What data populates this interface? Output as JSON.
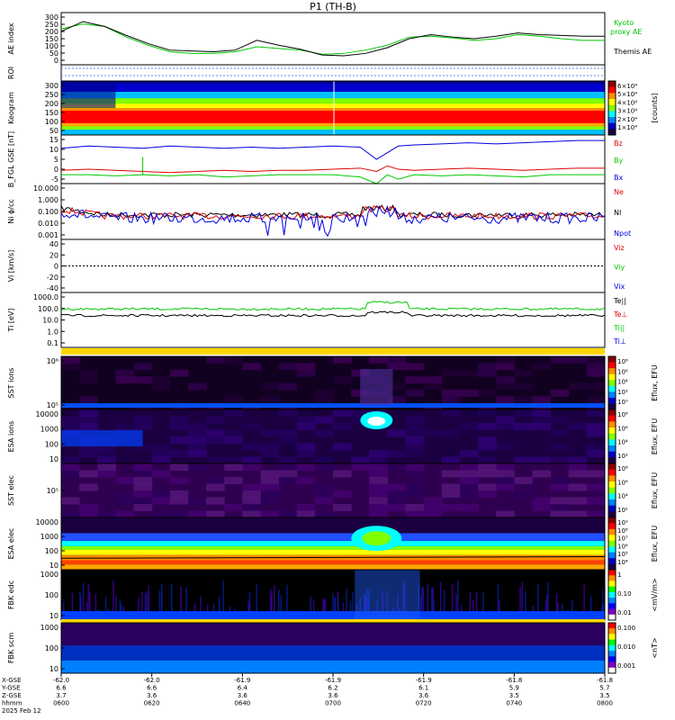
{
  "title": "P1 (TH-B)",
  "colors": {
    "green": "#00c800",
    "red": "#e00000",
    "blue": "#0000e0",
    "black": "#000000",
    "gold": "#ffd700",
    "dark": "#1a0030"
  },
  "chart_data": [
    {
      "type": "line",
      "id": "ae",
      "ylabel": "AE index",
      "yticks": [
        "300",
        "250",
        "200",
        "150",
        "100",
        "50",
        "0"
      ],
      "ylim": [
        -10,
        310
      ],
      "x": [
        0,
        0.04,
        0.08,
        0.12,
        0.16,
        0.2,
        0.24,
        0.28,
        0.32,
        0.36,
        0.4,
        0.44,
        0.48,
        0.52,
        0.56,
        0.6,
        0.64,
        0.68,
        0.72,
        0.76,
        0.8,
        0.84,
        0.88,
        0.92,
        0.96,
        1.0
      ],
      "series": [
        {
          "name": "Kyoto proxy AE",
          "color": "#00c800",
          "values": [
            210,
            240,
            225,
            160,
            110,
            70,
            60,
            60,
            70,
            100,
            90,
            80,
            55,
            60,
            80,
            110,
            160,
            165,
            155,
            140,
            150,
            175,
            165,
            150,
            140,
            140
          ]
        },
        {
          "name": "Themis AE",
          "color": "#000000",
          "values": [
            195,
            255,
            225,
            170,
            120,
            80,
            75,
            70,
            80,
            140,
            110,
            85,
            50,
            45,
            60,
            95,
            150,
            175,
            160,
            150,
            165,
            185,
            175,
            170,
            165,
            165
          ]
        }
      ],
      "legend": [
        "Kyoto",
        "proxy AE",
        "Themis AE"
      ]
    },
    {
      "type": "heatmap",
      "id": "roi",
      "ylabel": "ROI"
    },
    {
      "type": "heatmap",
      "id": "keogram",
      "ylabel": "Keogram",
      "yticks": [
        "300",
        "250",
        "200",
        "150",
        "100",
        "50"
      ],
      "colorbar": {
        "ticks": [
          "6×10⁴",
          "5×10⁴",
          "4×10⁴",
          "3×10⁴",
          "2×10⁴",
          "1×10⁴"
        ],
        "label": "[counts]"
      }
    },
    {
      "type": "line",
      "id": "bfield",
      "ylabel": "B_FGL GSE [nT]",
      "yticks": [
        "15",
        "10",
        "5",
        "0",
        "-5"
      ],
      "ylim": [
        -6,
        16
      ],
      "x": [
        0,
        0.05,
        0.1,
        0.15,
        0.2,
        0.25,
        0.3,
        0.35,
        0.4,
        0.45,
        0.5,
        0.55,
        0.58,
        0.6,
        0.62,
        0.65,
        0.7,
        0.75,
        0.8,
        0.85,
        0.9,
        0.95,
        1.0
      ],
      "series": [
        {
          "name": "Bz",
          "color": "#e00000",
          "values": [
            0,
            0.5,
            0,
            -0.5,
            -1,
            -0.5,
            0,
            -0.5,
            0,
            0,
            0.5,
            1,
            -0.5,
            2,
            0.5,
            0,
            0.5,
            1,
            0.5,
            0,
            0.5,
            1,
            1
          ]
        },
        {
          "name": "By",
          "color": "#00c800",
          "values": [
            -2,
            -2,
            -2.5,
            -2,
            -2.5,
            -2,
            -3,
            -2.5,
            -2,
            -2,
            -2,
            -3,
            -6,
            -2,
            -4,
            -2,
            -2.5,
            -2,
            -2.5,
            -3,
            -2,
            -2,
            -2
          ]
        },
        {
          "name": "Bx",
          "color": "#0000e0",
          "values": [
            10,
            11,
            10.5,
            10,
            11,
            10.5,
            10,
            10.5,
            10,
            10.5,
            11,
            10.5,
            5,
            8,
            11,
            11.5,
            12,
            12.5,
            12,
            12.5,
            13,
            13.5,
            13.5
          ]
        }
      ]
    },
    {
      "type": "line",
      "id": "density",
      "ylabel": "Ni ϕ/cc",
      "yticks": [
        "10.000",
        "1.000",
        "0.100",
        "0.010",
        "0.001"
      ],
      "log": true,
      "series_labels": [
        "Ne",
        "NI",
        "Npot"
      ]
    },
    {
      "type": "line",
      "id": "velocity",
      "ylabel": "Vi [km/s]",
      "yticks": [
        "40",
        "20",
        "0",
        "-20",
        "-40"
      ],
      "ylim": [
        -50,
        50
      ],
      "series_labels": [
        "Viz",
        "Viy",
        "Vix"
      ]
    },
    {
      "type": "line",
      "id": "temperature",
      "ylabel": "Ti [eV]",
      "yticks": [
        "1000.0",
        "100.0",
        "10.0",
        "1.0",
        "0.1"
      ],
      "log": true,
      "series_labels": [
        "Te||",
        "Te⊥",
        "Ti||",
        "Ti⊥"
      ]
    },
    {
      "type": "heatmap",
      "id": "sst_ion",
      "ylabel": "SST ions",
      "yticks": [
        "10⁶",
        "10⁵"
      ],
      "colorbar": {
        "ticks": [
          "10⁸",
          "10⁶",
          "10⁴",
          "10²",
          "10⁰"
        ],
        "label": "Eflux, EFU"
      }
    },
    {
      "type": "heatmap",
      "id": "esa_ion",
      "ylabel": "ESA ions",
      "yticks": [
        "10000",
        "1000",
        "100",
        "10"
      ],
      "colorbar": {
        "ticks": [
          "10⁸",
          "10⁶",
          "10⁴",
          "10²"
        ],
        "label": "Eflux, EFU"
      }
    },
    {
      "type": "heatmap",
      "id": "sst_elec",
      "ylabel": "SST elec",
      "yticks": [
        "10⁵"
      ],
      "colorbar": {
        "ticks": [
          "10⁸",
          "10⁶",
          "10⁴",
          "10²"
        ],
        "label": "Eflux, EFU"
      }
    },
    {
      "type": "heatmap",
      "id": "esa_elec",
      "ylabel": "ESA elec",
      "yticks": [
        "10000",
        "1000",
        "100",
        "10"
      ],
      "colorbar": {
        "ticks": [
          "10⁹",
          "10⁸",
          "10⁷",
          "10⁶",
          "10⁵",
          "10⁴"
        ],
        "label": "Eflux, EFU"
      }
    },
    {
      "type": "heatmap",
      "id": "fbk_e",
      "ylabel": "FBK edc",
      "yticks": [
        "1000",
        "100",
        "10"
      ],
      "colorbar": {
        "ticks": [
          "1",
          "0.10",
          "0.01"
        ],
        "label": "<mV/m>"
      }
    },
    {
      "type": "heatmap",
      "id": "fbk_b",
      "ylabel": "FBK scm",
      "yticks": [
        "1000",
        "100",
        "10"
      ],
      "colorbar": {
        "ticks": [
          "0.100",
          "0.010",
          "0.001"
        ],
        "label": "<nT>"
      }
    }
  ],
  "x_axis": {
    "row_labels": [
      "X-GSE",
      "Y-GSE",
      "Z-GSE",
      "hhmm",
      "2025 Feb 12"
    ],
    "columns": [
      [
        "-62.0",
        "6.6",
        "3.7",
        "0600"
      ],
      [
        "-62.0",
        "6.6",
        "3.6",
        "0620"
      ],
      [
        "-61.9",
        "6.4",
        "3.6",
        "0640"
      ],
      [
        "-61.9",
        "6.2",
        "3.6",
        "0700"
      ],
      [
        "-61.9",
        "6.1",
        "3.6",
        "0720"
      ],
      [
        "-61.8",
        "5.9",
        "3.5",
        "0740"
      ],
      [
        "-61.8",
        "5.7",
        "3.5",
        "0800"
      ]
    ]
  }
}
